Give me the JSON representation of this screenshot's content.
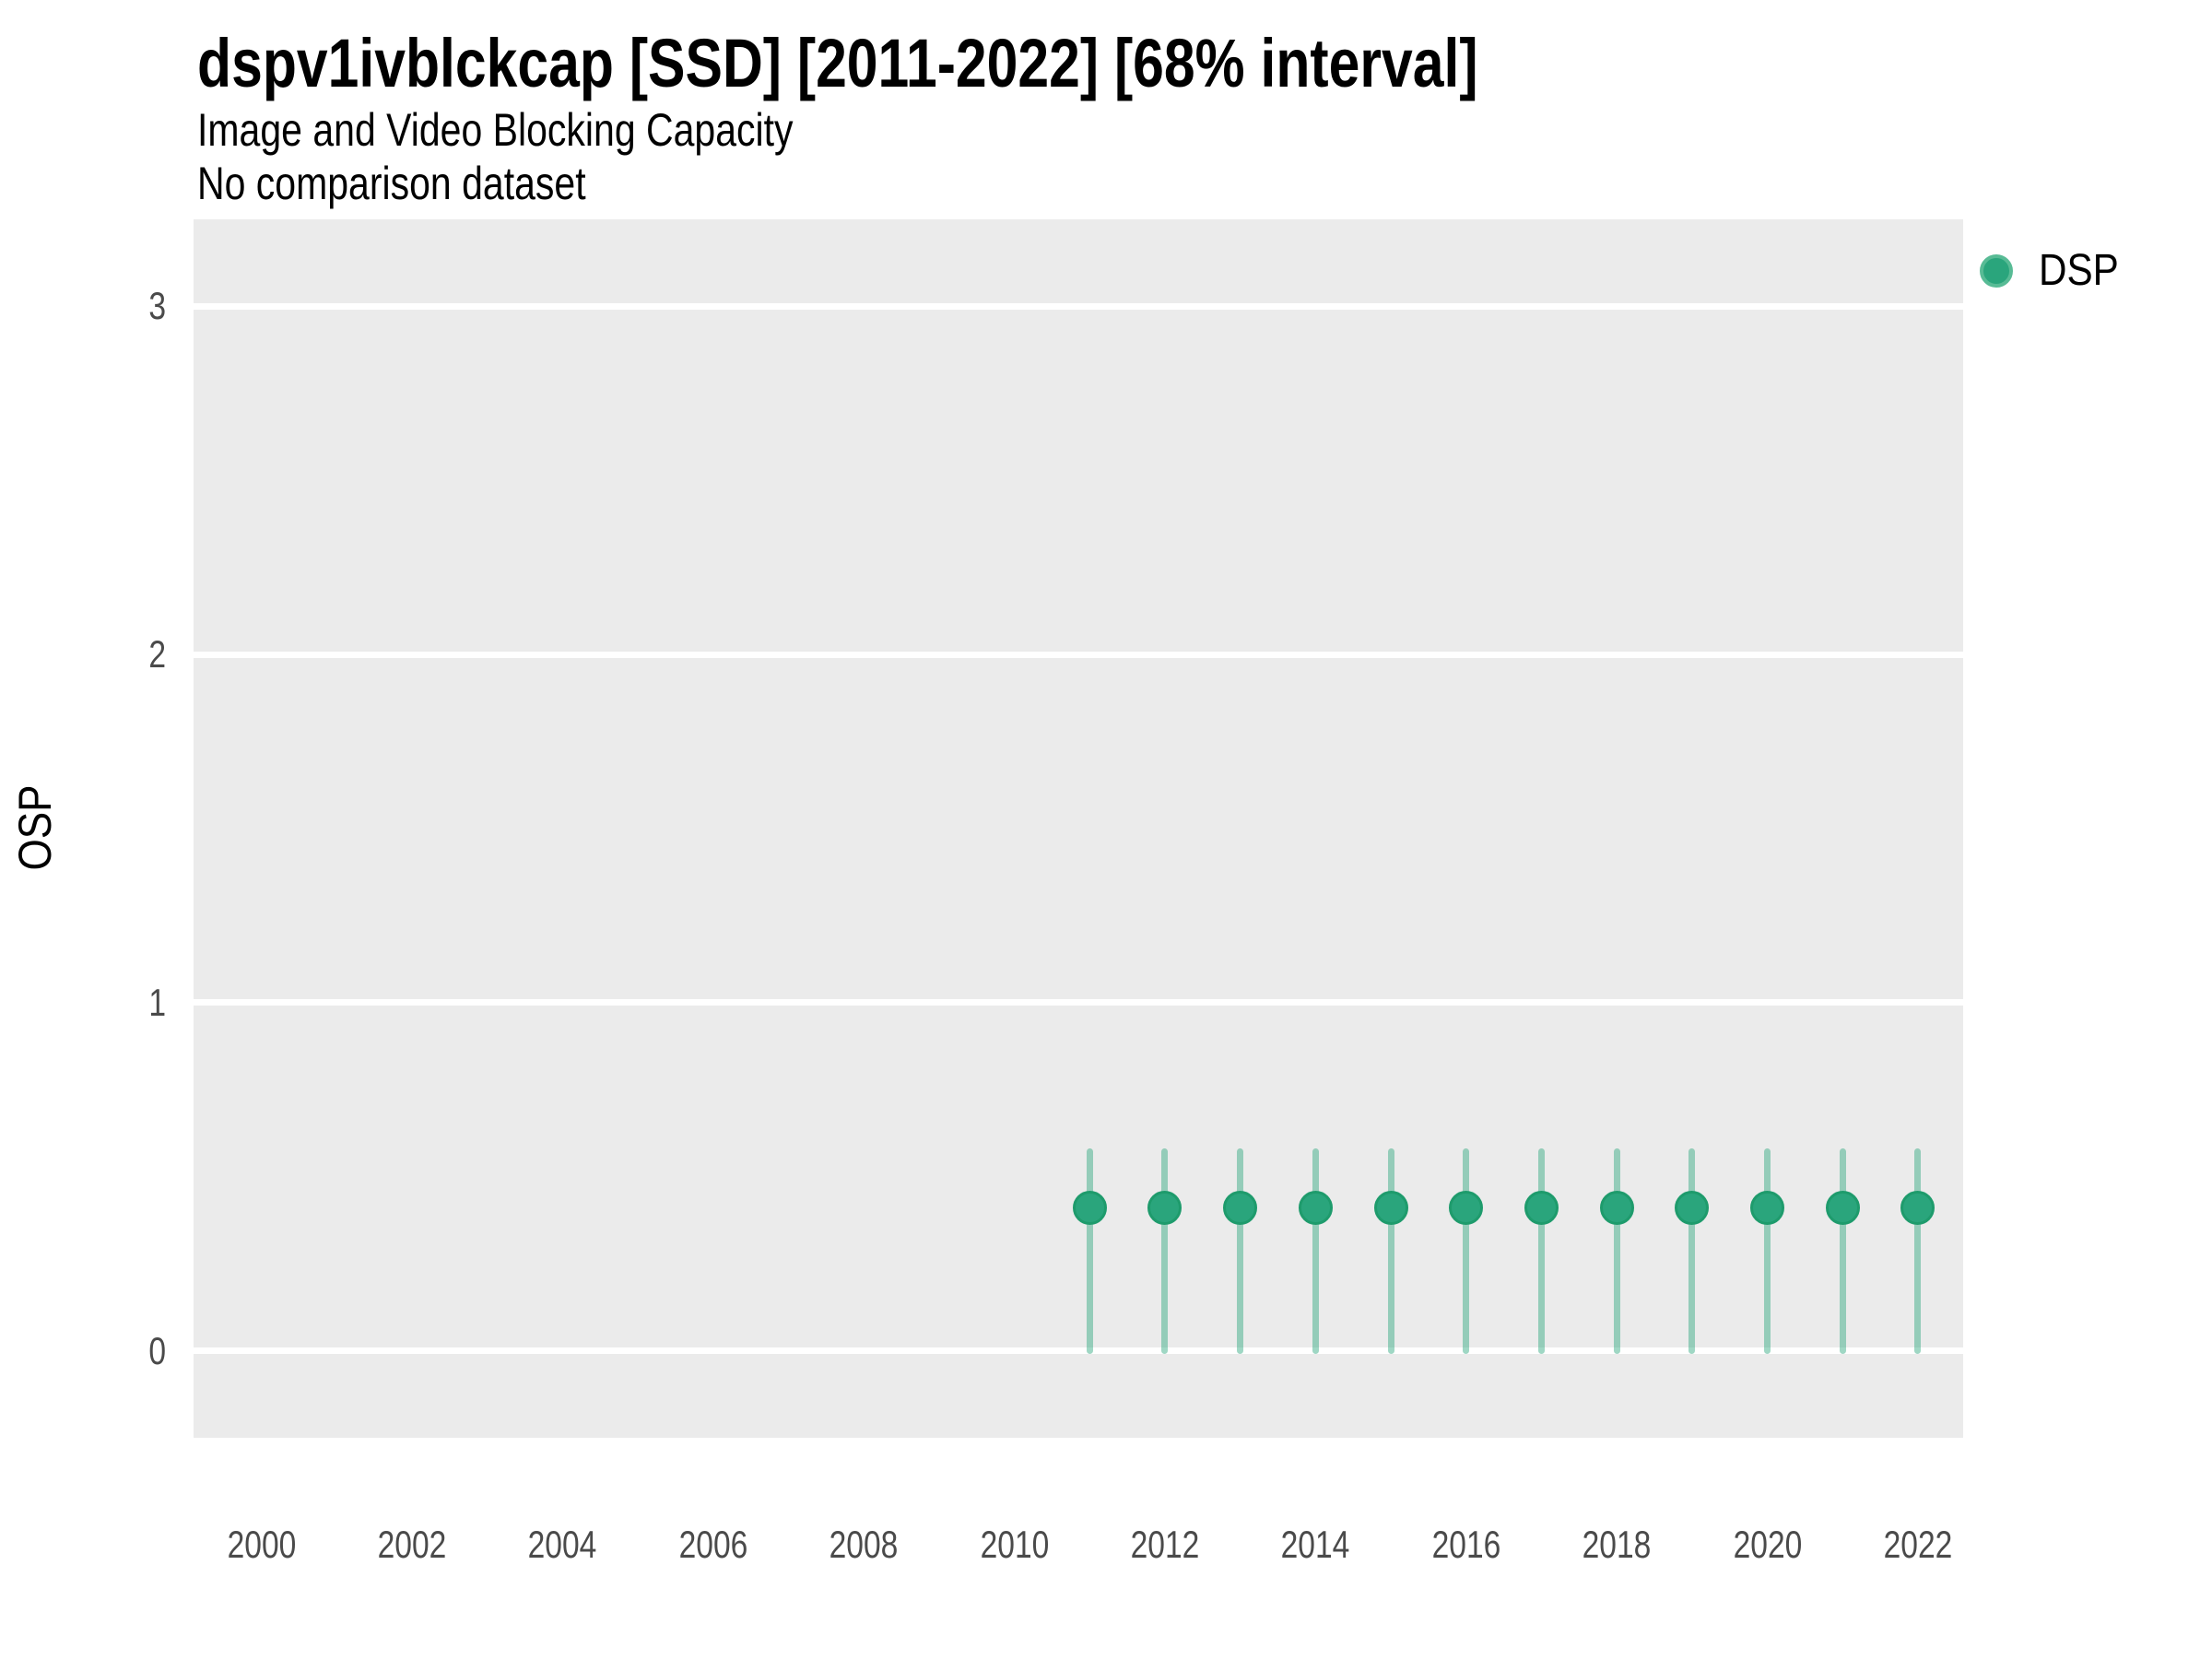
{
  "header": {
    "title": "dspv1ivblckcap [SSD] [2011-2022] [68% interval]",
    "subtitle": "Image and Video Blocking Capacity",
    "note": "No comparison dataset"
  },
  "legend": {
    "position": "right",
    "items": [
      {
        "label": "DSP",
        "color": "#2aa57c",
        "edge_color": "#58bb95"
      }
    ]
  },
  "chart_data": {
    "type": "scatter",
    "title": "dspv1ivblckcap [SSD] [2011-2022] [68% interval]",
    "subtitle": "Image and Video Blocking Capacity",
    "note": "No comparison dataset",
    "xlabel": "",
    "ylabel": "OSP",
    "xlim": [
      1999.1,
      2022.6
    ],
    "ylim": [
      -0.25,
      3.25
    ],
    "x_ticks": [
      2000,
      2002,
      2004,
      2006,
      2008,
      2010,
      2012,
      2014,
      2016,
      2018,
      2020,
      2022
    ],
    "y_ticks": [
      0,
      1,
      2,
      3
    ],
    "grid": "horizontal-major-only",
    "legend_position": "right",
    "interval_level": "68%",
    "series": [
      {
        "name": "DSP",
        "color": "#2aa57c",
        "point_edge_color": "#1e9b6c",
        "interval_color": "rgba(43,166,124,0.45)",
        "x": [
          2011,
          2012,
          2013,
          2014,
          2015,
          2016,
          2017,
          2018,
          2019,
          2020,
          2021,
          2022
        ],
        "y": [
          0.41,
          0.41,
          0.41,
          0.41,
          0.41,
          0.41,
          0.41,
          0.41,
          0.41,
          0.41,
          0.41,
          0.41
        ],
        "y_lower": [
          0.0,
          0.0,
          0.0,
          0.0,
          0.0,
          0.0,
          0.0,
          0.0,
          0.0,
          0.0,
          0.0,
          0.0
        ],
        "y_upper": [
          0.58,
          0.58,
          0.58,
          0.58,
          0.58,
          0.58,
          0.58,
          0.58,
          0.58,
          0.58,
          0.58,
          0.58
        ]
      }
    ]
  },
  "colors": {
    "panel_bg": "#ebebeb",
    "grid": "#ffffff",
    "tick_text": "#4a4a4a",
    "text": "#000000"
  }
}
